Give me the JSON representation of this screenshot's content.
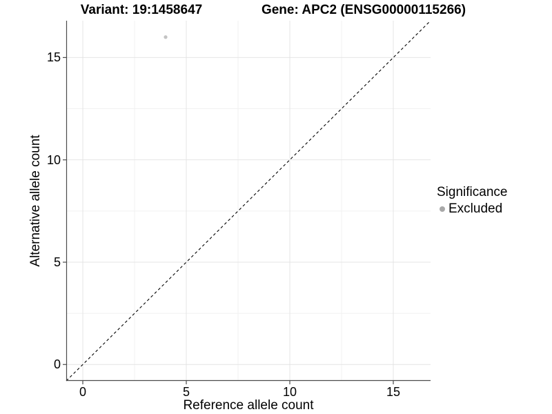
{
  "chart_data": {
    "type": "scatter",
    "title_left": "Variant: 19:1458647",
    "title_right": "Gene: APC2 (ENSG00000115266)",
    "xlabel": "Reference allele count",
    "ylabel": "Alternative allele count",
    "xlim": [
      -0.8,
      16.8
    ],
    "ylim": [
      -0.8,
      16.8
    ],
    "x_ticks": [
      0,
      5,
      10,
      15
    ],
    "y_ticks": [
      0,
      5,
      10,
      15
    ],
    "grid": "major and minor gridlines on, white panel background",
    "points": [
      {
        "x": 4,
        "y": 16,
        "series": "Excluded"
      }
    ],
    "reference_line": {
      "style": "dashed",
      "slope": 1,
      "intercept": 0
    },
    "legend": {
      "position": "right",
      "title": "Significance",
      "entries": [
        {
          "label": "Excluded",
          "color": "#a8a8a8"
        }
      ]
    },
    "colors": {
      "point": "#c3c3c3",
      "legend_point": "#a8a8a8",
      "grid_major": "#e4e4e4",
      "grid_minor": "#f1f1f1",
      "axis_line": "#4a4a4a",
      "reference_line": "#000000",
      "text": "#000000",
      "background": "#ffffff"
    }
  }
}
